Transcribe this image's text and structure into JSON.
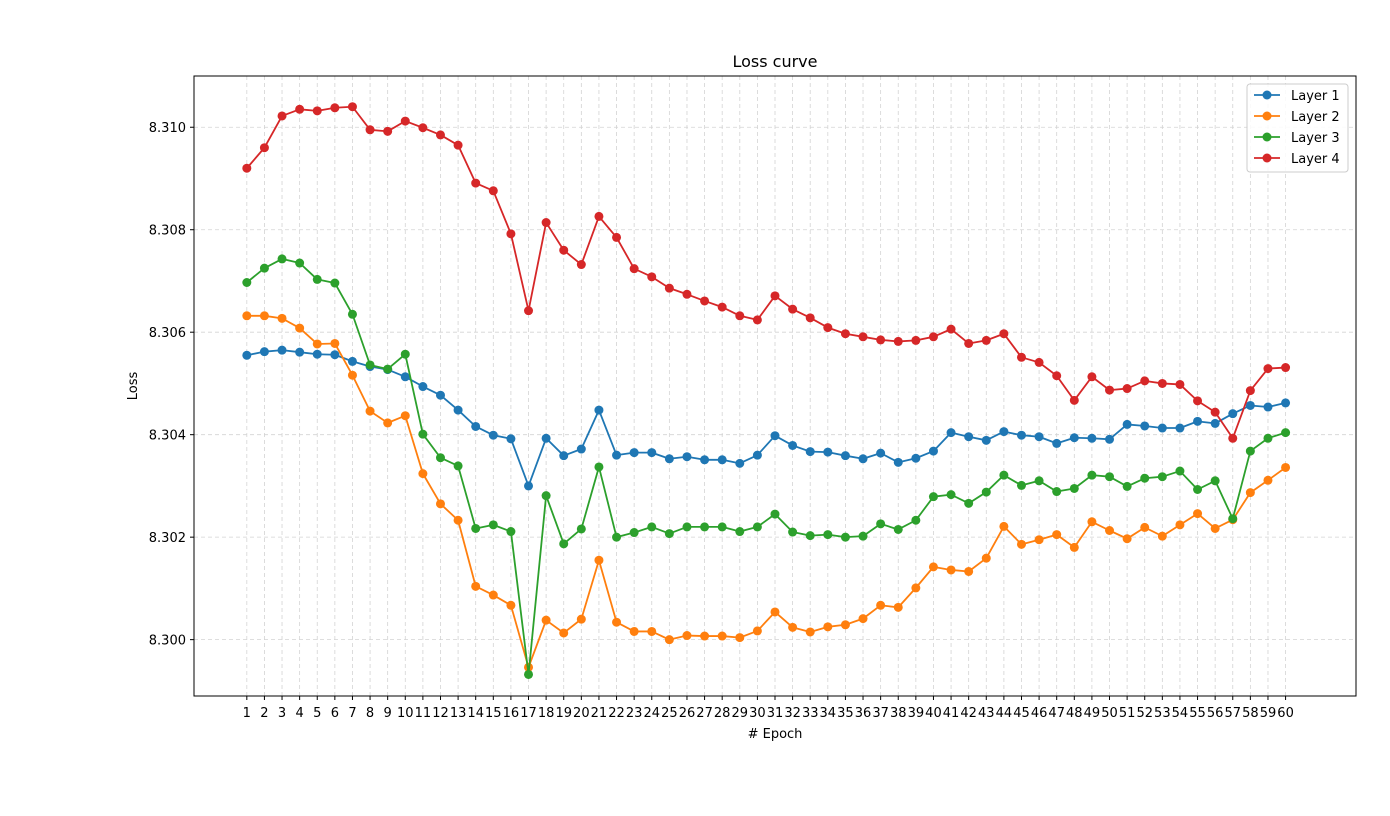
{
  "chart_data": {
    "type": "line",
    "title": "Loss curve",
    "xlabel": "# Epoch",
    "ylabel": "Loss",
    "x": [
      1,
      2,
      3,
      4,
      5,
      6,
      7,
      8,
      9,
      10,
      11,
      12,
      13,
      14,
      15,
      16,
      17,
      18,
      19,
      20,
      21,
      22,
      23,
      24,
      25,
      26,
      27,
      28,
      29,
      30,
      31,
      32,
      33,
      34,
      35,
      36,
      37,
      38,
      39,
      40,
      41,
      42,
      43,
      44,
      45,
      46,
      47,
      48,
      49,
      50,
      51,
      52,
      53,
      54,
      55,
      56,
      57,
      58,
      59,
      60
    ],
    "xlim": [
      -2,
      64
    ],
    "ylim": [
      8.2989,
      8.311
    ],
    "yticks": [
      8.3,
      8.302,
      8.304,
      8.306,
      8.308,
      8.31
    ],
    "ytick_labels": [
      "8.300",
      "8.302",
      "8.304",
      "8.306",
      "8.308",
      "8.310"
    ],
    "grid": true,
    "legend_position": "top-right",
    "series": [
      {
        "name": "Layer 1",
        "color": "#1f77b4",
        "values": [
          8.30555,
          8.30562,
          8.30565,
          8.30561,
          8.30557,
          8.30556,
          8.30543,
          8.30533,
          8.30527,
          8.30513,
          8.30494,
          8.30477,
          8.30448,
          8.30416,
          8.30399,
          8.30392,
          8.303,
          8.30393,
          8.30359,
          8.30372,
          8.30448,
          8.3036,
          8.30365,
          8.30365,
          8.30353,
          8.30357,
          8.30351,
          8.30351,
          8.30344,
          8.3036,
          8.30398,
          8.30379,
          8.30367,
          8.30366,
          8.30359,
          8.30353,
          8.30364,
          8.30346,
          8.30354,
          8.30368,
          8.30404,
          8.30396,
          8.30389,
          8.30406,
          8.30399,
          8.30396,
          8.30383,
          8.30394,
          8.30393,
          8.30391,
          8.3042,
          8.30417,
          8.30413,
          8.30413,
          8.30426,
          8.30422,
          8.30441,
          8.30457,
          8.30454,
          8.30462
        ]
      },
      {
        "name": "Layer 2",
        "color": "#ff7f0e",
        "values": [
          8.30632,
          8.30632,
          8.30627,
          8.30608,
          8.30577,
          8.30578,
          8.30516,
          8.30446,
          8.30423,
          8.30437,
          8.30324,
          8.30265,
          8.30233,
          8.30104,
          8.30087,
          8.30067,
          8.29946,
          8.30038,
          8.30013,
          8.3004,
          8.30155,
          8.30034,
          8.30016,
          8.30016,
          8.3,
          8.30008,
          8.30007,
          8.30007,
          8.30004,
          8.30017,
          8.30054,
          8.30024,
          8.30015,
          8.30025,
          8.30029,
          8.30041,
          8.30067,
          8.30063,
          8.30101,
          8.30142,
          8.30136,
          8.30133,
          8.30159,
          8.30221,
          8.30186,
          8.30195,
          8.30205,
          8.3018,
          8.3023,
          8.30213,
          8.30197,
          8.30219,
          8.30202,
          8.30224,
          8.30246,
          8.30217,
          8.30234,
          8.30287,
          8.30311,
          8.30336
        ]
      },
      {
        "name": "Layer 3",
        "color": "#2ca02c",
        "values": [
          8.30697,
          8.30725,
          8.30743,
          8.30735,
          8.30703,
          8.30696,
          8.30635,
          8.30536,
          8.30528,
          8.30557,
          8.30401,
          8.30355,
          8.30339,
          8.30217,
          8.30224,
          8.30211,
          8.29932,
          8.30281,
          8.30187,
          8.30216,
          8.30337,
          8.302,
          8.30209,
          8.3022,
          8.30207,
          8.3022,
          8.3022,
          8.3022,
          8.30211,
          8.3022,
          8.30245,
          8.3021,
          8.30203,
          8.30205,
          8.302,
          8.30202,
          8.30226,
          8.30215,
          8.30233,
          8.30279,
          8.30283,
          8.30266,
          8.30288,
          8.30321,
          8.30301,
          8.3031,
          8.30289,
          8.30295,
          8.30321,
          8.30318,
          8.30299,
          8.30315,
          8.30318,
          8.30329,
          8.30293,
          8.3031,
          8.30236,
          8.30368,
          8.30393,
          8.30404
        ]
      },
      {
        "name": "Layer 4",
        "color": "#d62728",
        "values": [
          8.3092,
          8.3096,
          8.31022,
          8.31035,
          8.31032,
          8.31038,
          8.3104,
          8.30995,
          8.30992,
          8.31012,
          8.30999,
          8.30985,
          8.30965,
          8.30891,
          8.30876,
          8.30792,
          8.30642,
          8.30814,
          8.3076,
          8.30732,
          8.30826,
          8.30785,
          8.30724,
          8.30708,
          8.30686,
          8.30674,
          8.30661,
          8.30649,
          8.30632,
          8.30624,
          8.30671,
          8.30645,
          8.30628,
          8.30609,
          8.30597,
          8.30591,
          8.30585,
          8.30582,
          8.30584,
          8.30591,
          8.30606,
          8.30578,
          8.30584,
          8.30597,
          8.30551,
          8.30541,
          8.30515,
          8.30467,
          8.30513,
          8.30487,
          8.3049,
          8.30505,
          8.305,
          8.30498,
          8.30466,
          8.30444,
          8.30393,
          8.30486,
          8.30529,
          8.30531
        ]
      }
    ]
  }
}
